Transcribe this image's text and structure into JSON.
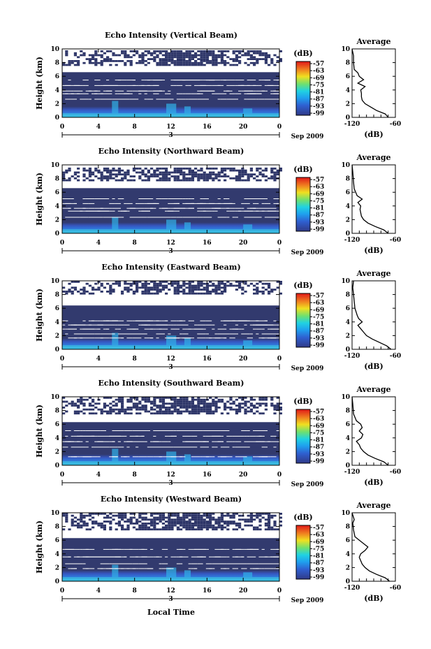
{
  "chart_data": {
    "type": "heatmap",
    "panels": [
      {
        "title": "Echo Intensity (Vertical Beam)",
        "upper_gap": [
          6.6,
          7.6
        ],
        "top_echo": 9.8,
        "gaps": [
          [
            5.4,
            5.5
          ],
          [
            4.6,
            4.7
          ],
          [
            3.8,
            3.9
          ],
          [
            3.4,
            3.5
          ],
          [
            2.6,
            2.7
          ]
        ],
        "avg_profile": [
          [
            -70,
            0
          ],
          [
            -74,
            0.5
          ],
          [
            -86,
            1
          ],
          [
            -94,
            1.5
          ],
          [
            -102,
            2
          ],
          [
            -106,
            2.5
          ],
          [
            -107,
            3
          ],
          [
            -107,
            3.5
          ],
          [
            -108,
            4
          ],
          [
            -102,
            4.5
          ],
          [
            -112,
            5
          ],
          [
            -104,
            5.5
          ],
          [
            -110,
            6
          ],
          [
            -112,
            6.5
          ],
          [
            -117,
            7
          ],
          [
            -118,
            8
          ],
          [
            -118,
            9
          ],
          [
            -120,
            10
          ]
        ]
      },
      {
        "title": "Echo Intensity (Northward Beam)",
        "upper_gap": [
          6.6,
          7.6
        ],
        "top_echo": 9.6,
        "gaps": [
          [
            5.0,
            5.1
          ],
          [
            4.3,
            4.4
          ],
          [
            3.6,
            3.7
          ],
          [
            3.2,
            3.3
          ],
          [
            2.3,
            2.4
          ]
        ],
        "avg_profile": [
          [
            -70,
            0
          ],
          [
            -76,
            0.5
          ],
          [
            -88,
            1
          ],
          [
            -98,
            1.5
          ],
          [
            -104,
            2
          ],
          [
            -107,
            2.5
          ],
          [
            -108,
            3
          ],
          [
            -109,
            3.5
          ],
          [
            -108,
            4
          ],
          [
            -112,
            4.5
          ],
          [
            -106,
            5
          ],
          [
            -113,
            5.5
          ],
          [
            -115,
            6
          ],
          [
            -117,
            6.5
          ],
          [
            -118,
            7.5
          ],
          [
            -119,
            9
          ],
          [
            -120,
            10
          ]
        ]
      },
      {
        "title": "Echo Intensity (Eastward Beam)",
        "upper_gap": [
          6.4,
          8.2
        ],
        "top_echo": 10.0,
        "gaps": [
          [
            4.1,
            4.2
          ],
          [
            3.5,
            3.6
          ],
          [
            2.9,
            3.0
          ],
          [
            2.2,
            2.3
          ],
          [
            1.6,
            1.7
          ]
        ],
        "avg_profile": [
          [
            -66,
            0
          ],
          [
            -72,
            0.5
          ],
          [
            -82,
            1
          ],
          [
            -92,
            1.5
          ],
          [
            -100,
            2
          ],
          [
            -104,
            2.5
          ],
          [
            -108,
            3
          ],
          [
            -112,
            3.5
          ],
          [
            -106,
            4
          ],
          [
            -111,
            4.5
          ],
          [
            -113,
            5
          ],
          [
            -116,
            6
          ],
          [
            -117,
            7
          ],
          [
            -118,
            8
          ],
          [
            -119,
            9
          ],
          [
            -118,
            10
          ]
        ]
      },
      {
        "title": "Echo Intensity (Southward Beam)",
        "upper_gap": [
          6.3,
          7.6
        ],
        "top_echo": 10.0,
        "gaps": [
          [
            5.0,
            5.1
          ],
          [
            4.2,
            4.3
          ],
          [
            3.4,
            3.5
          ],
          [
            2.6,
            2.7
          ],
          [
            1.2,
            1.3
          ]
        ],
        "avg_profile": [
          [
            -70,
            0
          ],
          [
            -76,
            0.5
          ],
          [
            -88,
            1
          ],
          [
            -98,
            1.5
          ],
          [
            -104,
            2
          ],
          [
            -108,
            2.5
          ],
          [
            -110,
            3
          ],
          [
            -114,
            3.5
          ],
          [
            -107,
            4
          ],
          [
            -105,
            4.5
          ],
          [
            -110,
            5
          ],
          [
            -106,
            5.5
          ],
          [
            -108,
            6
          ],
          [
            -114,
            6.5
          ],
          [
            -118,
            7.5
          ],
          [
            -119,
            9
          ],
          [
            -120,
            10
          ]
        ]
      },
      {
        "title": "Echo Intensity (Westward Beam)",
        "upper_gap": [
          6.3,
          7.6
        ],
        "top_echo": 10.0,
        "gaps": [
          [
            4.6,
            4.7
          ],
          [
            3.5,
            3.6
          ],
          [
            2.5,
            2.6
          ],
          [
            1.8,
            1.9
          ]
        ],
        "avg_profile": [
          [
            -68,
            0
          ],
          [
            -74,
            0.5
          ],
          [
            -86,
            1
          ],
          [
            -96,
            1.5
          ],
          [
            -102,
            2
          ],
          [
            -106,
            2.5
          ],
          [
            -108,
            3
          ],
          [
            -110,
            3.5
          ],
          [
            -108,
            4
          ],
          [
            -102,
            4.5
          ],
          [
            -98,
            5
          ],
          [
            -104,
            5.5
          ],
          [
            -110,
            6
          ],
          [
            -116,
            6.5
          ],
          [
            -118,
            7.5
          ],
          [
            -119,
            8.5
          ],
          [
            -117,
            9
          ],
          [
            -120,
            10
          ]
        ]
      }
    ],
    "x_ticks": [
      "0",
      "4",
      "8",
      "12",
      "16",
      "20",
      "0"
    ],
    "x_range": [
      0,
      24
    ],
    "y_ticks": [
      "0",
      "2",
      "4",
      "6",
      "8",
      "10"
    ],
    "y_range": [
      0,
      10
    ],
    "ylabel": "Height (km)",
    "date_day": "3",
    "date_label": "Sep 2009",
    "xlabel": "Local Time",
    "colorbar": {
      "unit": "(dB)",
      "ticks": [
        "-57",
        "-63",
        "-69",
        "-75",
        "-81",
        "-87",
        "-93",
        "-99"
      ]
    },
    "avg_title": "Average",
    "avg_xlabel": "(dB)",
    "avg_x_ticks": [
      "-120",
      "-60"
    ],
    "avg_x_range": [
      -120,
      -60
    ]
  },
  "colors": {
    "base": "#323a6e",
    "deep": "#2d3568"
  }
}
